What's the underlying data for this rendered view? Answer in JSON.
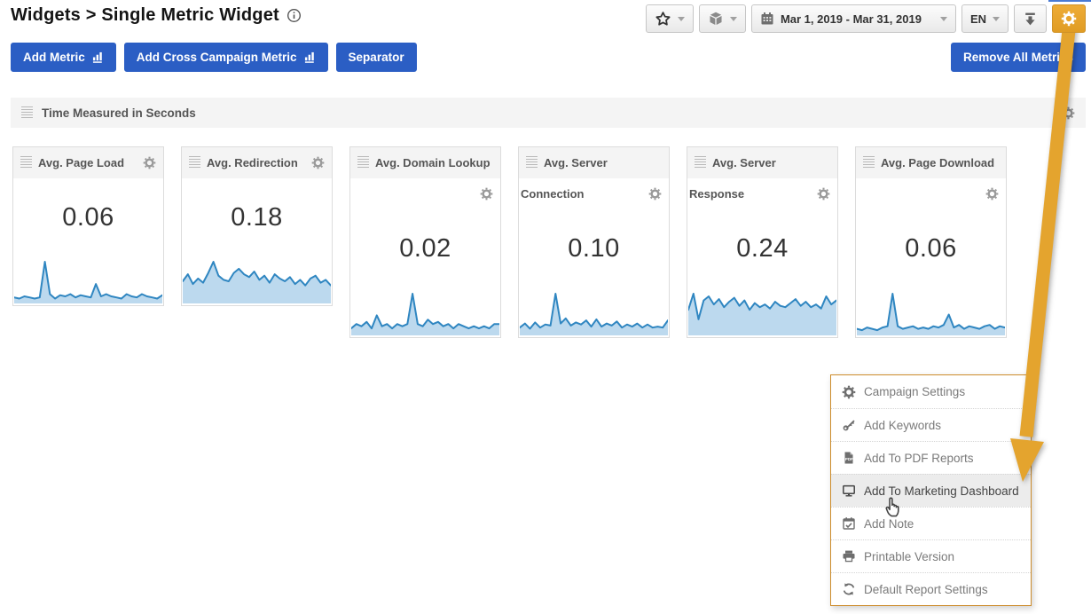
{
  "page": {
    "title": "Widgets > Single Metric Widget"
  },
  "toolbar": {
    "favorites_icon": "star-icon",
    "widgets_icon": "cube-icon",
    "date_range": "Mar 1, 2019 - Mar 31, 2019",
    "language": "EN",
    "download_icon": "download-icon",
    "settings_icon": "gear-icon"
  },
  "actions": {
    "add_metric": "Add Metric",
    "add_cross_campaign_metric": "Add Cross Campaign Metric",
    "separator": "Separator",
    "remove_all_metrics": "Remove All Metrics"
  },
  "section": {
    "title": "Time Measured in Seconds"
  },
  "chart_data": [
    {
      "type": "area",
      "title": "Avg. Page Load",
      "title_lines": [
        "Avg. Page Load"
      ],
      "value": "0.06",
      "layout": "gear-in-header",
      "ylim": [
        0,
        0.35
      ],
      "values": [
        0.03,
        0.02,
        0.04,
        0.03,
        0.02,
        0.03,
        0.35,
        0.06,
        0.02,
        0.05,
        0.04,
        0.06,
        0.03,
        0.05,
        0.04,
        0.03,
        0.15,
        0.04,
        0.06,
        0.04,
        0.03,
        0.02,
        0.06,
        0.04,
        0.03,
        0.06,
        0.04,
        0.03,
        0.02,
        0.05
      ]
    },
    {
      "type": "area",
      "title": "Avg. Redirection",
      "title_lines": [
        "Avg. Redirection"
      ],
      "value": "0.18",
      "layout": "gear-in-header",
      "ylim": [
        0,
        0.28
      ],
      "values": [
        0.14,
        0.19,
        0.12,
        0.16,
        0.13,
        0.2,
        0.28,
        0.18,
        0.15,
        0.14,
        0.2,
        0.23,
        0.19,
        0.17,
        0.21,
        0.15,
        0.18,
        0.13,
        0.19,
        0.16,
        0.14,
        0.17,
        0.12,
        0.15,
        0.11,
        0.16,
        0.18,
        0.13,
        0.15,
        0.11
      ]
    },
    {
      "type": "area",
      "title": "Avg. Domain Lookup",
      "title_lines": [
        "Avg. Domain Lookup"
      ],
      "value": "0.02",
      "layout": "gear-below",
      "ylim": [
        0,
        0.09
      ],
      "values": [
        0.01,
        0.02,
        0.015,
        0.025,
        0.01,
        0.04,
        0.015,
        0.02,
        0.01,
        0.02,
        0.015,
        0.02,
        0.09,
        0.02,
        0.015,
        0.03,
        0.02,
        0.025,
        0.015,
        0.02,
        0.01,
        0.02,
        0.015,
        0.01,
        0.015,
        0.01,
        0.015,
        0.01,
        0.02,
        0.02
      ]
    },
    {
      "type": "area",
      "title": "Avg. Server Connection",
      "title_lines": [
        "Avg. Server",
        "Connection"
      ],
      "value": "0.10",
      "layout": "wrapped-title",
      "ylim": [
        0,
        0.38
      ],
      "values": [
        0.05,
        0.09,
        0.04,
        0.1,
        0.05,
        0.08,
        0.07,
        0.38,
        0.09,
        0.14,
        0.07,
        0.1,
        0.08,
        0.12,
        0.06,
        0.13,
        0.06,
        0.09,
        0.07,
        0.11,
        0.05,
        0.08,
        0.06,
        0.09,
        0.05,
        0.08,
        0.05,
        0.06,
        0.05,
        0.12
      ]
    },
    {
      "type": "area",
      "title": "Avg. Server Response",
      "title_lines": [
        "Avg. Server",
        "Response"
      ],
      "value": "0.24",
      "layout": "wrapped-title",
      "ylim": [
        0,
        0.29
      ],
      "values": [
        0.17,
        0.29,
        0.1,
        0.24,
        0.27,
        0.21,
        0.25,
        0.19,
        0.23,
        0.26,
        0.2,
        0.24,
        0.17,
        0.22,
        0.19,
        0.21,
        0.18,
        0.23,
        0.2,
        0.19,
        0.22,
        0.25,
        0.2,
        0.23,
        0.19,
        0.21,
        0.18,
        0.27,
        0.21,
        0.24
      ]
    },
    {
      "type": "area",
      "title": "Avg. Page Download",
      "title_lines": [
        "Avg. Page Download"
      ],
      "value": "0.06",
      "layout": "gear-below",
      "ylim": [
        0,
        0.3
      ],
      "values": [
        0.03,
        0.02,
        0.04,
        0.03,
        0.02,
        0.04,
        0.05,
        0.3,
        0.05,
        0.03,
        0.04,
        0.05,
        0.03,
        0.04,
        0.03,
        0.05,
        0.04,
        0.06,
        0.14,
        0.04,
        0.06,
        0.03,
        0.05,
        0.04,
        0.03,
        0.05,
        0.06,
        0.03,
        0.05,
        0.04
      ]
    }
  ],
  "menu": {
    "items": [
      {
        "icon": "gear-icon",
        "label": "Campaign Settings",
        "active": false
      },
      {
        "icon": "key-icon",
        "label": "Add Keywords",
        "active": false
      },
      {
        "icon": "pdf-file-icon",
        "label": "Add To PDF Reports",
        "active": false
      },
      {
        "icon": "monitor-icon",
        "label": "Add To Marketing Dashboard",
        "active": true
      },
      {
        "icon": "calendar-check-icon",
        "label": "Add Note",
        "active": false
      },
      {
        "icon": "printer-icon",
        "label": "Printable Version",
        "active": false
      },
      {
        "icon": "refresh-icon",
        "label": "Default Report Settings",
        "active": false
      }
    ]
  },
  "colors": {
    "accent_orange": "#e4a42e",
    "primary_blue": "#2b5ec4",
    "spark_line": "#2f86c1",
    "spark_fill": "#bcd9ee",
    "menu_border": "#cd8c2c"
  }
}
